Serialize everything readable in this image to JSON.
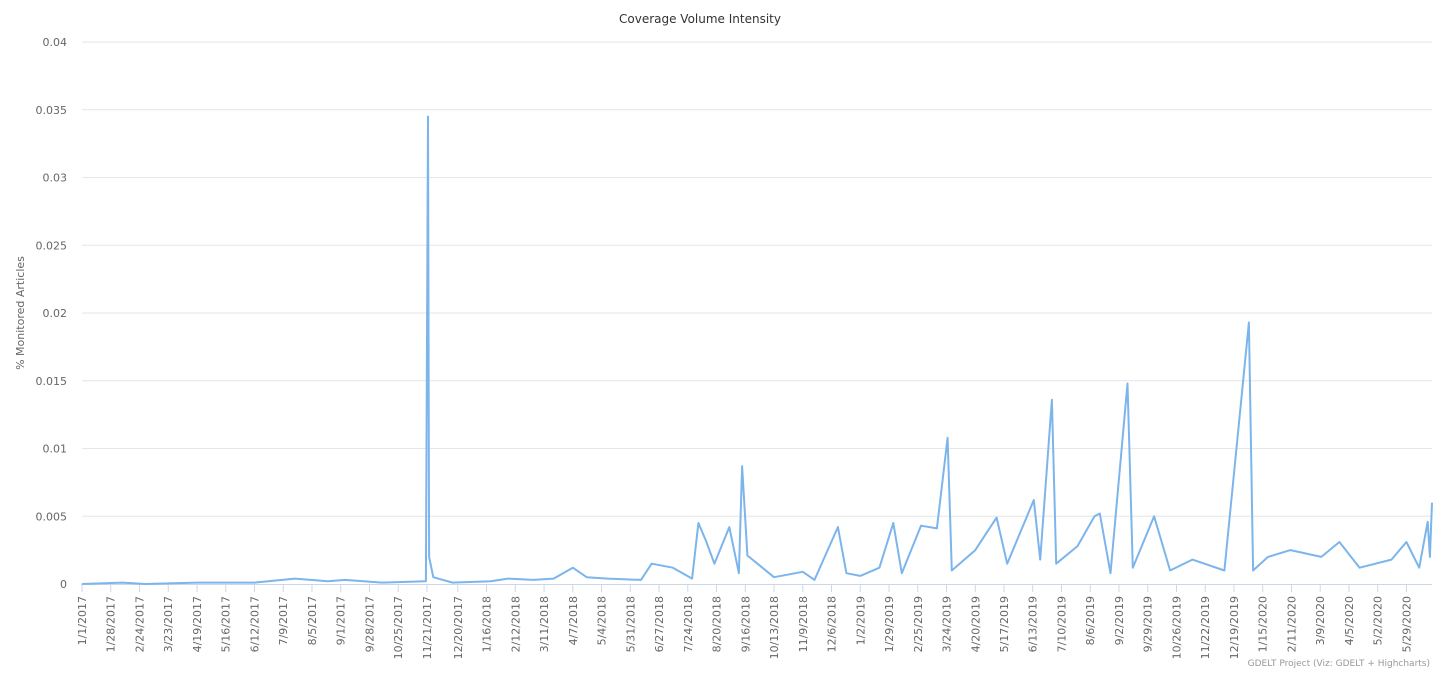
{
  "chart_data": {
    "type": "line",
    "title": "Coverage Volume Intensity",
    "xlabel": "",
    "ylabel": "% Monitored Articles",
    "ylim": [
      0,
      0.04
    ],
    "yticks": [
      "0",
      "0.005",
      "0.01",
      "0.015",
      "0.02",
      "0.025",
      "0.03",
      "0.035",
      "0.04"
    ],
    "x_tick_labels": [
      "1/1/2017",
      "1/28/2017",
      "2/24/2017",
      "3/23/2017",
      "4/19/2017",
      "5/16/2017",
      "6/12/2017",
      "7/9/2017",
      "8/5/2017",
      "9/1/2017",
      "9/28/2017",
      "10/25/2017",
      "11/21/2017",
      "12/20/2017",
      "1/16/2018",
      "2/12/2018",
      "3/11/2018",
      "4/7/2018",
      "5/4/2018",
      "5/31/2018",
      "6/27/2018",
      "7/24/2018",
      "8/20/2018",
      "9/16/2018",
      "10/13/2018",
      "11/9/2018",
      "12/6/2018",
      "1/2/2019",
      "1/29/2019",
      "2/25/2019",
      "3/24/2019",
      "4/20/2019",
      "5/17/2019",
      "6/13/2019",
      "7/10/2019",
      "8/6/2019",
      "9/2/2019",
      "9/29/2019",
      "10/26/2019",
      "11/22/2019",
      "12/19/2019",
      "1/15/2020",
      "2/11/2020",
      "3/9/2020",
      "4/5/2020",
      "5/2/2020",
      "5/29/2020"
    ],
    "x_start": "1/1/2017",
    "x_end": "6/22/2020",
    "grid": true,
    "legend": "none",
    "series": [
      {
        "color": "#7cb5ec",
        "points": [
          [
            "1/1/2017",
            0.0
          ],
          [
            "2/8/2017",
            0.0001
          ],
          [
            "3/1/2017",
            0.0
          ],
          [
            "4/19/2017",
            0.0001
          ],
          [
            "6/12/2017",
            0.0001
          ],
          [
            "7/20/2017",
            0.0004
          ],
          [
            "8/20/2017",
            0.0002
          ],
          [
            "9/5/2017",
            0.0003
          ],
          [
            "10/10/2017",
            0.0001
          ],
          [
            "11/20/2017",
            0.0002
          ],
          [
            "11/22/2017",
            0.0345
          ],
          [
            "11/23/2017",
            0.002
          ],
          [
            "11/27/2017",
            0.0005
          ],
          [
            "12/15/2017",
            0.0001
          ],
          [
            "1/20/2018",
            0.0002
          ],
          [
            "2/5/2018",
            0.0004
          ],
          [
            "3/1/2018",
            0.0003
          ],
          [
            "3/20/2018",
            0.0004
          ],
          [
            "4/7/2018",
            0.0012
          ],
          [
            "4/20/2018",
            0.0005
          ],
          [
            "5/10/2018",
            0.0004
          ],
          [
            "6/10/2018",
            0.0003
          ],
          [
            "6/20/2018",
            0.0015
          ],
          [
            "7/10/2018",
            0.0012
          ],
          [
            "7/28/2018",
            0.0004
          ],
          [
            "8/3/2018",
            0.0045
          ],
          [
            "8/10/2018",
            0.0032
          ],
          [
            "8/18/2018",
            0.0015
          ],
          [
            "9/1/2018",
            0.0042
          ],
          [
            "9/10/2018",
            0.0008
          ],
          [
            "9/13/2018",
            0.0087
          ],
          [
            "9/18/2018",
            0.0021
          ],
          [
            "10/13/2018",
            0.0005
          ],
          [
            "11/9/2018",
            0.0009
          ],
          [
            "11/20/2018",
            0.0003
          ],
          [
            "12/12/2018",
            0.0042
          ],
          [
            "12/20/2018",
            0.0008
          ],
          [
            "1/2/2019",
            0.0006
          ],
          [
            "1/20/2019",
            0.0012
          ],
          [
            "2/2/2019",
            0.0045
          ],
          [
            "2/10/2019",
            0.0008
          ],
          [
            "2/28/2019",
            0.0043
          ],
          [
            "3/15/2019",
            0.0041
          ],
          [
            "3/25/2019",
            0.0108
          ],
          [
            "3/29/2019",
            0.001
          ],
          [
            "4/20/2019",
            0.0025
          ],
          [
            "5/10/2019",
            0.0049
          ],
          [
            "5/20/2019",
            0.0015
          ],
          [
            "6/14/2019",
            0.0062
          ],
          [
            "6/20/2019",
            0.0018
          ],
          [
            "7/1/2019",
            0.0136
          ],
          [
            "7/5/2019",
            0.0015
          ],
          [
            "7/25/2019",
            0.0028
          ],
          [
            "8/10/2019",
            0.005
          ],
          [
            "8/15/2019",
            0.0052
          ],
          [
            "8/25/2019",
            0.0008
          ],
          [
            "9/10/2019",
            0.0148
          ],
          [
            "9/15/2019",
            0.0012
          ],
          [
            "10/5/2019",
            0.005
          ],
          [
            "10/20/2019",
            0.001
          ],
          [
            "11/10/2019",
            0.0018
          ],
          [
            "12/10/2019",
            0.001
          ],
          [
            "1/2/2020",
            0.0193
          ],
          [
            "1/6/2020",
            0.001
          ],
          [
            "1/20/2020",
            0.002
          ],
          [
            "2/10/2020",
            0.0025
          ],
          [
            "3/10/2020",
            0.002
          ],
          [
            "3/27/2020",
            0.0031
          ],
          [
            "4/15/2020",
            0.0012
          ],
          [
            "5/15/2020",
            0.0018
          ],
          [
            "5/29/2020",
            0.0031
          ],
          [
            "6/10/2020",
            0.0012
          ],
          [
            "6/18/2020",
            0.0046
          ],
          [
            "6/20/2020",
            0.002
          ],
          [
            "6/22/2020",
            0.006
          ]
        ]
      }
    ]
  },
  "credit": "GDELT Project (Viz: GDELT + Highcharts)"
}
